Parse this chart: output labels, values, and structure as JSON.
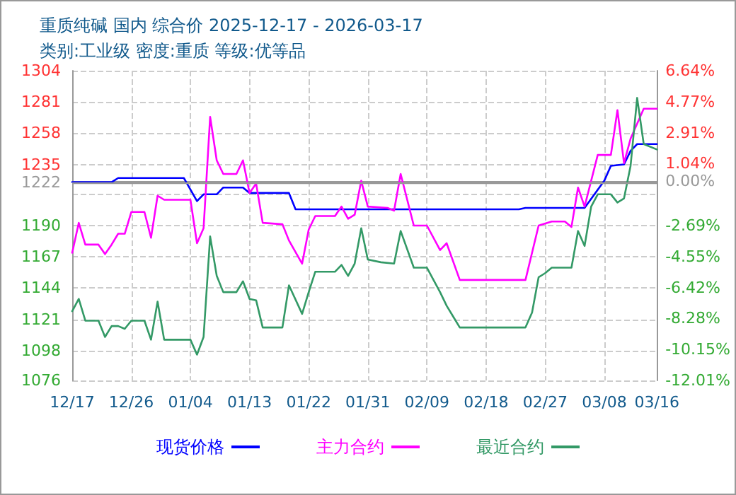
{
  "chart_data": {
    "type": "line",
    "title": "重质纯碱 国内 综合价 2025-12-17 - 2026-03-17",
    "subtitle": "类别:工业级 密度:重质 等级:优等品",
    "series": [
      {
        "name": "现货价格",
        "color": "#0000ff",
        "x": [
          "2025-12-17",
          "2025-12-23",
          "2025-12-24",
          "2026-01-03",
          "2026-01-05",
          "2026-01-06",
          "2026-01-08",
          "2026-01-09",
          "2026-01-12",
          "2026-01-13",
          "2026-01-19",
          "2026-01-20",
          "2026-02-23",
          "2026-02-24",
          "2026-03-05",
          "2026-03-08",
          "2026-03-09",
          "2026-03-11",
          "2026-03-12",
          "2026-03-13",
          "2026-03-16"
        ],
        "values": [
          1222,
          1222,
          1225,
          1225,
          1208,
          1213,
          1213,
          1218,
          1218,
          1214,
          1214,
          1202,
          1202,
          1203,
          1203,
          1223,
          1234,
          1235,
          1245,
          1250,
          1250
        ]
      },
      {
        "name": "主力合约",
        "color": "#ff00ff",
        "x": [
          "2025-12-17",
          "2025-12-18",
          "2025-12-19",
          "2025-12-21",
          "2025-12-22",
          "2025-12-23",
          "2025-12-24",
          "2025-12-25",
          "2025-12-26",
          "2025-12-28",
          "2025-12-29",
          "2025-12-30",
          "2025-12-31",
          "2026-01-04",
          "2026-01-05",
          "2026-01-06",
          "2026-01-07",
          "2026-01-08",
          "2026-01-09",
          "2026-01-11",
          "2026-01-12",
          "2026-01-13",
          "2026-01-14",
          "2026-01-15",
          "2026-01-18",
          "2026-01-19",
          "2026-01-21",
          "2026-01-22",
          "2026-01-23",
          "2026-01-26",
          "2026-01-27",
          "2026-01-28",
          "2026-01-29",
          "2026-01-30",
          "2026-01-31",
          "2026-02-03",
          "2026-02-04",
          "2026-02-05",
          "2026-02-07",
          "2026-02-09",
          "2026-02-11",
          "2026-02-12",
          "2026-02-14",
          "2026-02-24",
          "2026-02-26",
          "2026-02-28",
          "2026-03-02",
          "2026-03-03",
          "2026-03-04",
          "2026-03-05",
          "2026-03-07",
          "2026-03-09",
          "2026-03-10",
          "2026-03-11",
          "2026-03-12",
          "2026-03-14",
          "2026-03-16"
        ],
        "values": [
          1170,
          1192,
          1176,
          1176,
          1169,
          1176,
          1184,
          1184,
          1200,
          1200,
          1181,
          1212,
          1209,
          1209,
          1177,
          1188,
          1270,
          1238,
          1228,
          1228,
          1238,
          1214,
          1221,
          1192,
          1191,
          1179,
          1162,
          1187,
          1197,
          1197,
          1204,
          1195,
          1198,
          1223,
          1204,
          1203,
          1201,
          1228,
          1190,
          1190,
          1172,
          1177,
          1150,
          1150,
          1190,
          1193,
          1193,
          1189,
          1218,
          1204,
          1242,
          1242,
          1275,
          1236,
          1254,
          1276,
          1276
        ]
      },
      {
        "name": "最近合约",
        "color": "#339966",
        "x": [
          "2025-12-17",
          "2025-12-18",
          "2025-12-19",
          "2025-12-21",
          "2025-12-22",
          "2025-12-23",
          "2025-12-24",
          "2025-12-25",
          "2025-12-26",
          "2025-12-28",
          "2025-12-29",
          "2025-12-30",
          "2025-12-31",
          "2026-01-04",
          "2026-01-05",
          "2026-01-06",
          "2026-01-07",
          "2026-01-08",
          "2026-01-09",
          "2026-01-11",
          "2026-01-12",
          "2026-01-13",
          "2026-01-14",
          "2026-01-15",
          "2026-01-18",
          "2026-01-19",
          "2026-01-21",
          "2026-01-22",
          "2026-01-23",
          "2026-01-26",
          "2026-01-27",
          "2026-01-28",
          "2026-01-29",
          "2026-01-30",
          "2026-01-31",
          "2026-02-02",
          "2026-02-04",
          "2026-02-05",
          "2026-02-07",
          "2026-02-09",
          "2026-02-11",
          "2026-02-12",
          "2026-02-13",
          "2026-02-14",
          "2026-02-24",
          "2026-02-25",
          "2026-02-26",
          "2026-02-27",
          "2026-02-28",
          "2026-03-03",
          "2026-03-04",
          "2026-03-05",
          "2026-03-06",
          "2026-03-07",
          "2026-03-09",
          "2026-03-10",
          "2026-03-11",
          "2026-03-12",
          "2026-03-13",
          "2026-03-14",
          "2026-03-16"
        ],
        "values": [
          1127,
          1136,
          1120,
          1120,
          1108,
          1116,
          1116,
          1114,
          1120,
          1120,
          1106,
          1134,
          1106,
          1106,
          1095,
          1108,
          1182,
          1153,
          1141,
          1141,
          1149,
          1136,
          1135,
          1115,
          1115,
          1146,
          1125,
          1141,
          1156,
          1156,
          1161,
          1153,
          1162,
          1188,
          1165,
          1163,
          1162,
          1186,
          1159,
          1159,
          1141,
          1131,
          1123,
          1115,
          1115,
          1126,
          1152,
          1155,
          1159,
          1159,
          1186,
          1175,
          1204,
          1213,
          1213,
          1207,
          1210,
          1234,
          1284,
          1250,
          1246
        ]
      }
    ],
    "xlim": [
      "2025-12-17",
      "2026-03-16"
    ],
    "xticks": [
      {
        "value": "2025-12-17",
        "label": "12/17"
      },
      {
        "value": "2025-12-26",
        "label": "12/26"
      },
      {
        "value": "2026-01-04",
        "label": "01/04"
      },
      {
        "value": "2026-01-13",
        "label": "01/13"
      },
      {
        "value": "2026-01-22",
        "label": "01/22"
      },
      {
        "value": "2026-01-31",
        "label": "01/31"
      },
      {
        "value": "2026-02-09",
        "label": "02/09"
      },
      {
        "value": "2026-02-18",
        "label": "02/18"
      },
      {
        "value": "2026-02-27",
        "label": "02/27"
      },
      {
        "value": "2026-03-08",
        "label": "03/08"
      },
      {
        "value": "2026-03-16",
        "label": "03/16"
      }
    ],
    "ylim": [
      1076,
      1304
    ],
    "yticks": [
      1076,
      1098,
      1121,
      1144,
      1167,
      1190,
      {
        "value": 1212.8,
        "label": null
      },
      1222,
      1235,
      1258,
      1281,
      1304
    ],
    "y2lim": [
      -12.01,
      6.64
    ],
    "y2ticks": [
      {
        "value": -12.01,
        "label": "-12.01%"
      },
      {
        "value": -10.145,
        "label": "-10.15%"
      },
      {
        "value": -8.28,
        "label": "-8.28%"
      },
      {
        "value": -6.415,
        "label": "-6.42%"
      },
      {
        "value": -4.55,
        "label": "-4.55%"
      },
      {
        "value": -2.685,
        "label": "-2.69%"
      },
      {
        "value": 0,
        "label": "0.00%"
      },
      {
        "value": 1.045,
        "label": "1.04%"
      },
      {
        "value": 2.91,
        "label": "2.91%"
      },
      {
        "value": 4.775,
        "label": "4.77%"
      },
      {
        "value": 6.64,
        "label": "6.64%"
      }
    ],
    "ref_lines": [
      {
        "axis": "y",
        "value": 1222,
        "color": "#999999"
      }
    ],
    "grid": true,
    "legend": "bottom",
    "marker": "none",
    "line_style": "solid"
  }
}
